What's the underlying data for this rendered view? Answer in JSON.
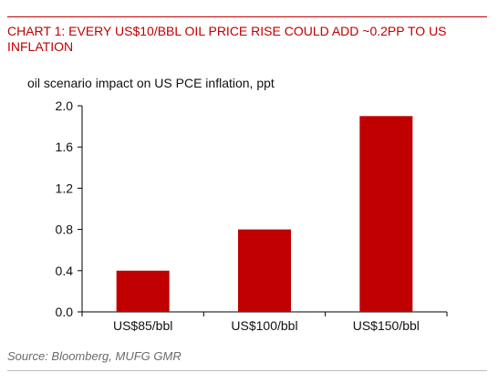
{
  "header": {
    "title": "CHART 1: EVERY US$10/BBL OIL PRICE RISE COULD ADD ~0.2PP TO US INFLATION"
  },
  "footer": {
    "source": "Source: Bloomberg, MUFG GMR"
  },
  "colors": {
    "accent": "#c00000",
    "bar": "#c00000",
    "source_text": "#6b6b6b"
  },
  "chart_data": {
    "type": "bar",
    "title": "CHART 1: EVERY US$10/BBL OIL PRICE RISE COULD ADD ~0.2PP TO US INFLATION",
    "ylabel": "oil scenario impact on US PCE inflation, ppt",
    "xlabel": "",
    "categories": [
      "US$85/bbl",
      "US$100/bbl",
      "US$150/bbl"
    ],
    "values": [
      0.4,
      0.8,
      1.9
    ],
    "ylim": [
      0.0,
      2.0
    ],
    "yticks": [
      "0.0",
      "0.4",
      "0.8",
      "1.2",
      "1.6",
      "2.0"
    ],
    "grid": false,
    "legend": "none"
  }
}
